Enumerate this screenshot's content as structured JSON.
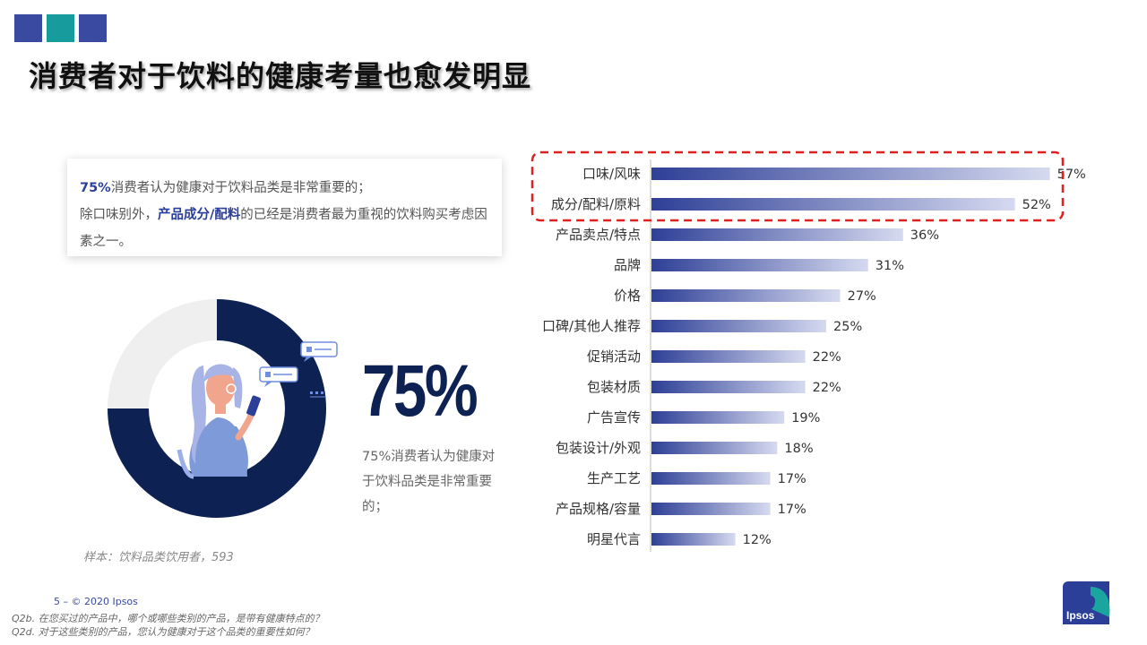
{
  "header": {
    "title": "消费者对于饮料的健康考量也愈发明显",
    "squares": [
      "#3a4aa0",
      "#169c9c",
      "#3a4aa0"
    ]
  },
  "callout": {
    "percent": "75%",
    "line1_rest": "消费者认为健康对于饮料品类是非常重要的；",
    "line2_pre": "除口味别外，",
    "line2_hl": "产品成分/配料",
    "line2_post": "的已经是消费者最为重视的饮料购买考虑因素之一。"
  },
  "donut": {
    "value": 75,
    "big_label": "75%",
    "description": "75%消费者认为健康对于饮料品类是非常重要的；",
    "dark_color": "#0d2252",
    "light_color": "#efefef"
  },
  "sample_note": "样本：饮料品类饮用者，593",
  "footer": {
    "page": "5 –  © 2020 Ipsos",
    "q1": "Q2b. 在您买过的产品中，哪个或哪些类别的产品，是带有健康特点的？",
    "q2": "Q2d. 对于这些类别的产品，您认为健康对于这个品类的重要性如何？"
  },
  "logo": {
    "text": "Ipsos"
  },
  "chart_data": {
    "type": "bar",
    "orientation": "horizontal",
    "categories": [
      "口味/风味",
      "成分/配料/原料",
      "产品卖点/特点",
      "品牌",
      "价格",
      "口碑/其他人推荐",
      "促销活动",
      "包装材质",
      "广告宣传",
      "包装设计/外观",
      "生产工艺",
      "产品规格/容量",
      "明星代言"
    ],
    "values": [
      57,
      52,
      36,
      31,
      27,
      25,
      22,
      22,
      19,
      18,
      17,
      17,
      12
    ],
    "value_labels": [
      "57%",
      "52%",
      "36%",
      "31%",
      "27%",
      "25%",
      "22%",
      "22%",
      "19%",
      "18%",
      "17%",
      "17%",
      "12%"
    ],
    "xlim": [
      0,
      60
    ],
    "highlighted": [
      "口味/风味",
      "成分/配料/原料"
    ],
    "bar_gradient": [
      "#2e3f96",
      "#d6daf0"
    ],
    "highlight_color": "#e02020"
  }
}
